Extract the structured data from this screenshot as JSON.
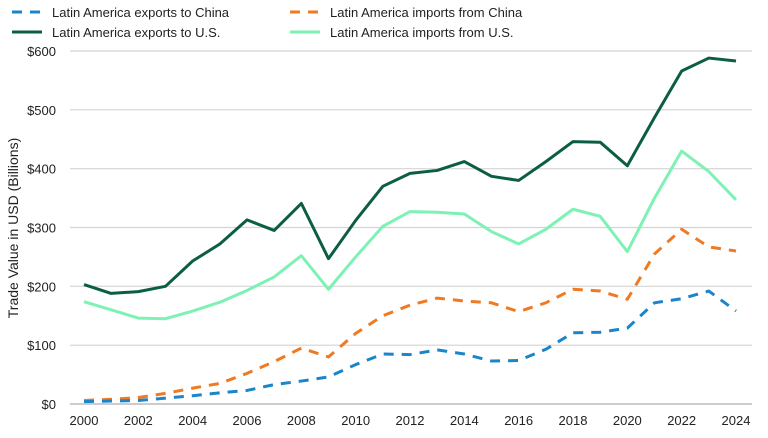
{
  "chart_data": {
    "type": "line",
    "title": "",
    "xlabel": "",
    "ylabel": "Trade Value in USD (Billions)",
    "ylim": [
      0,
      600
    ],
    "xlim": [
      2000,
      2024
    ],
    "grid": true,
    "legend_position": "top",
    "x": [
      2000,
      2001,
      2002,
      2003,
      2004,
      2005,
      2006,
      2007,
      2008,
      2009,
      2010,
      2011,
      2012,
      2013,
      2014,
      2015,
      2016,
      2017,
      2018,
      2019,
      2020,
      2021,
      2022,
      2023,
      2024
    ],
    "x_ticks": [
      "2000",
      "2002",
      "2004",
      "2006",
      "2008",
      "2010",
      "2012",
      "2014",
      "2016",
      "2018",
      "2020",
      "2022",
      "2024"
    ],
    "y_ticks": [
      "$0",
      "$100",
      "$200",
      "$300",
      "$400",
      "$500",
      "$600"
    ],
    "series": [
      {
        "name": "Latin America exports to China",
        "color": "#1a85c8",
        "style": "dashed",
        "values": [
          4,
          5,
          6,
          10,
          14,
          19,
          23,
          33,
          39,
          46,
          67,
          85,
          84,
          92,
          85,
          73,
          74,
          93,
          121,
          122,
          129,
          172,
          179,
          192,
          158
        ]
      },
      {
        "name": "Latin America imports from China",
        "color": "#f07a22",
        "style": "dashed",
        "values": [
          6,
          8,
          11,
          18,
          27,
          35,
          52,
          72,
          95,
          80,
          120,
          150,
          168,
          180,
          175,
          172,
          157,
          172,
          195,
          192,
          178,
          255,
          297,
          267,
          260
        ]
      },
      {
        "name": "Latin America exports to U.S.",
        "color": "#0b5e45",
        "style": "solid",
        "values": [
          203,
          188,
          191,
          200,
          243,
          272,
          313,
          295,
          341,
          247,
          312,
          370,
          392,
          397,
          412,
          387,
          380,
          412,
          446,
          445,
          405,
          487,
          566,
          588,
          583
        ]
      },
      {
        "name": "Latin America imports from U.S.",
        "color": "#7ef2b4",
        "style": "solid",
        "values": [
          174,
          160,
          146,
          145,
          158,
          173,
          193,
          216,
          252,
          195,
          250,
          302,
          327,
          326,
          323,
          293,
          272,
          297,
          331,
          319,
          259,
          350,
          430,
          395,
          347
        ]
      }
    ]
  }
}
